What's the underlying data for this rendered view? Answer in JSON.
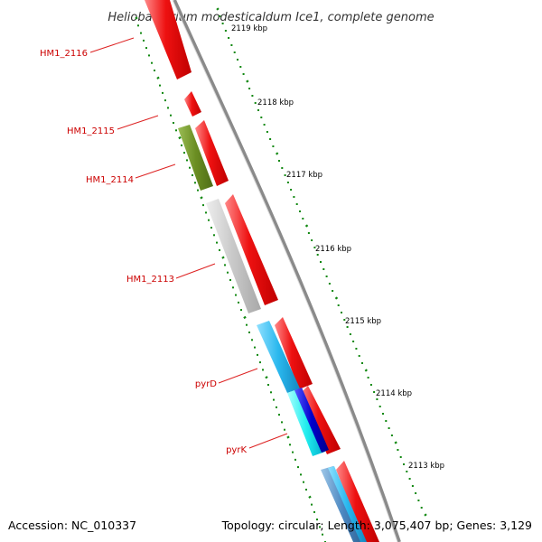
{
  "title": "Heliobacterium modesticaldum Ice1, complete genome",
  "footer": {
    "accession": "Accession: NC_010337",
    "topology": "Topology: circular; Length: 3,075,407 bp; Genes: 3,129"
  },
  "colors": {
    "background": "#ffffff",
    "backbone": "#8a8a8a",
    "cds_red": "#ee1111",
    "olive_gene": "#6b8e23",
    "grey_gene": "#c8c8c8",
    "cyan_gene": "#2ab8ee",
    "blue_gene": "#0000cc",
    "tick_green": "#118811",
    "label_red": "#cc0000"
  },
  "ticks": [
    {
      "label": "2119 kbp"
    },
    {
      "label": "2118 kbp"
    },
    {
      "label": "2117 kbp"
    },
    {
      "label": "2116 kbp"
    },
    {
      "label": "2115 kbp"
    },
    {
      "label": "2114 kbp"
    },
    {
      "label": "2113 kbp"
    }
  ],
  "genes": [
    {
      "label": "HM1_2116"
    },
    {
      "label": "HM1_2115"
    },
    {
      "label": "HM1_2114"
    },
    {
      "label": "HM1_2113"
    },
    {
      "label": "pyrD"
    },
    {
      "label": "pyrK"
    }
  ]
}
